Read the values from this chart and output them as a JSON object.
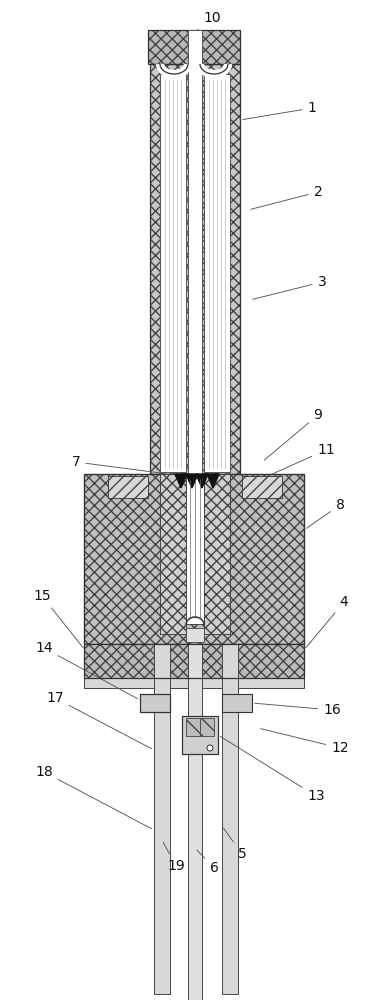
{
  "bg_color": "#ffffff",
  "fig_width": 3.86,
  "fig_height": 10.0,
  "dpi": 100,
  "ec": "#333333",
  "hatch_fc": "#c8c8c8",
  "label_fs": 10,
  "label_color": "#111111",
  "arrow_color": "#555555"
}
